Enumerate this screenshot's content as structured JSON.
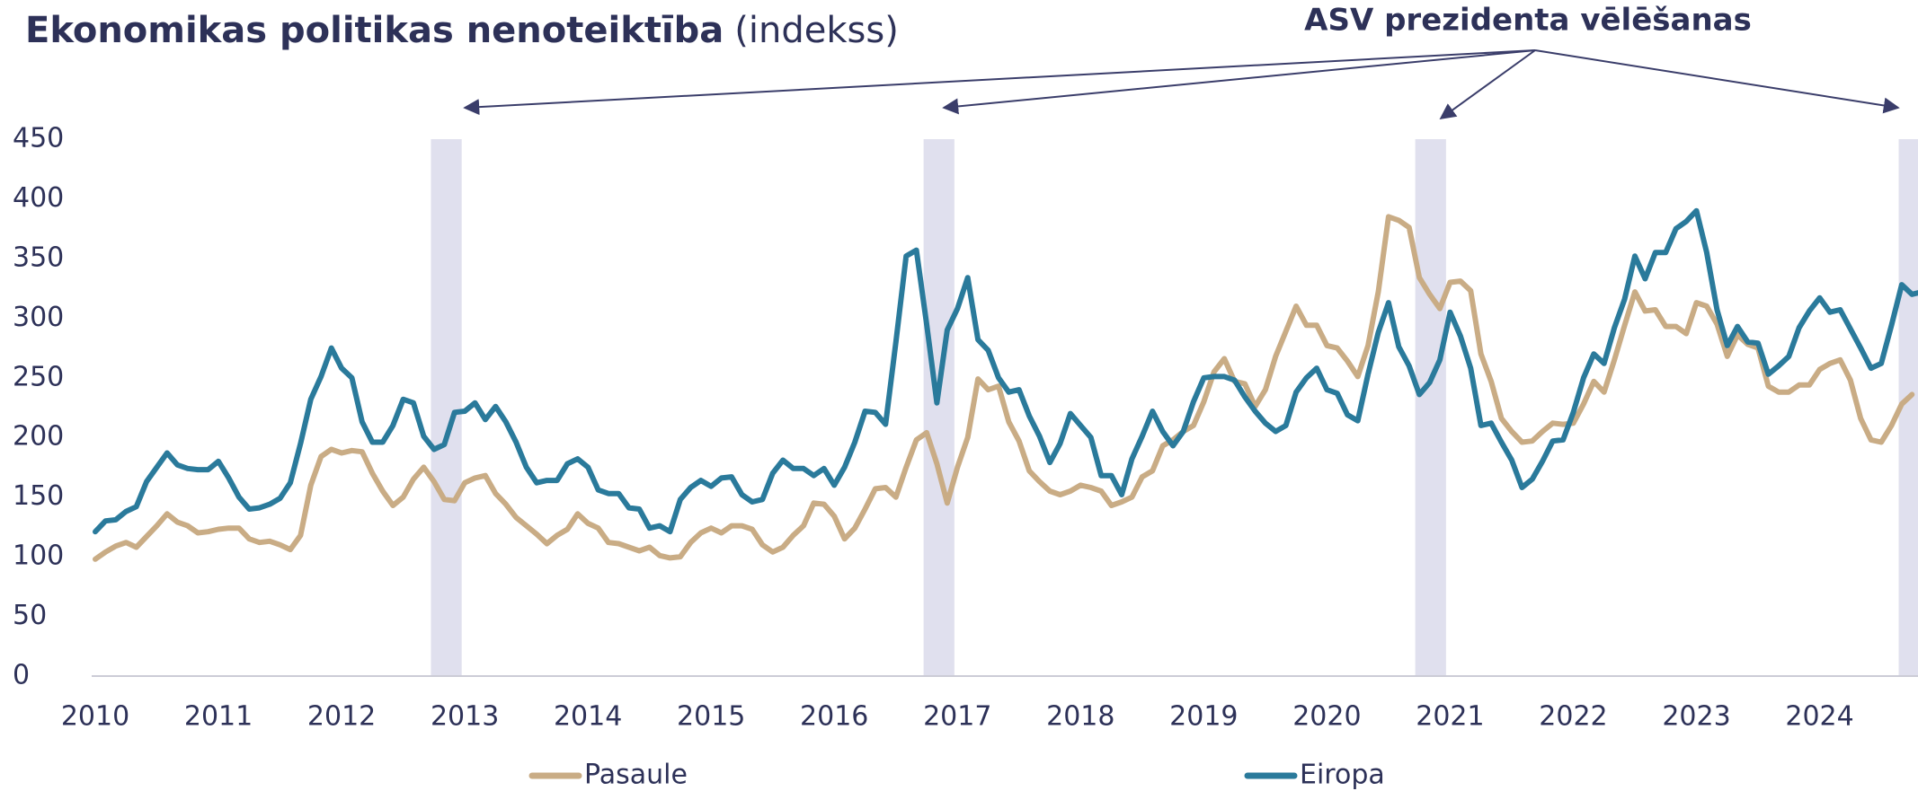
{
  "chart_data": {
    "type": "line",
    "title": "Ekonomikas politikas nenoteiktība",
    "subtitle": "(indekss)",
    "annotation": "ASV prezidenta vēlēšanas",
    "categories": [
      "2010",
      null,
      null,
      null,
      null,
      null,
      null,
      null,
      null,
      null,
      null,
      null,
      "2011",
      null,
      null,
      null,
      null,
      null,
      null,
      null,
      null,
      null,
      null,
      null,
      "2012",
      null,
      null,
      null,
      null,
      null,
      null,
      null,
      null,
      null,
      null,
      null,
      "2013",
      null,
      null,
      null,
      null,
      null,
      null,
      null,
      null,
      null,
      null,
      null,
      "2014",
      null,
      null,
      null,
      null,
      null,
      null,
      null,
      null,
      null,
      null,
      null,
      "2015",
      null,
      null,
      null,
      null,
      null,
      null,
      null,
      null,
      null,
      null,
      null,
      "2016",
      null,
      null,
      null,
      null,
      null,
      null,
      null,
      null,
      null,
      null,
      null,
      "2017",
      null,
      null,
      null,
      null,
      null,
      null,
      null,
      null,
      null,
      null,
      null,
      "2018",
      null,
      null,
      null,
      null,
      null,
      null,
      null,
      null,
      null,
      null,
      null,
      "2019",
      null,
      null,
      null,
      null,
      null,
      null,
      null,
      null,
      null,
      null,
      null,
      "2020",
      null,
      null,
      null,
      null,
      null,
      null,
      null,
      null,
      null,
      null,
      null,
      "2021",
      null,
      null,
      null,
      null,
      null,
      null,
      null,
      null,
      null,
      null,
      null,
      "2022",
      null,
      null,
      null,
      null,
      null,
      null,
      null,
      null,
      null,
      null,
      null,
      "2023",
      null,
      null,
      null,
      null,
      null,
      null,
      null,
      null,
      null,
      null,
      null,
      "2024",
      null,
      null,
      null,
      null,
      null,
      null,
      null,
      null,
      null,
      null
    ],
    "series": [
      {
        "name": "Pasaule",
        "color": "#c9ac85",
        "values": [
          98,
          104,
          109,
          112,
          108,
          117,
          126,
          136,
          129,
          126,
          120,
          121,
          123,
          124,
          124,
          115,
          112,
          113,
          110,
          106,
          118,
          160,
          184,
          190,
          187,
          189,
          188,
          170,
          155,
          143,
          150,
          165,
          175,
          163,
          148,
          147,
          162,
          166,
          168,
          153,
          144,
          133,
          126,
          119,
          111,
          118,
          123,
          136,
          128,
          124,
          112,
          111,
          108,
          105,
          108,
          101,
          99,
          100,
          112,
          120,
          124,
          120,
          126,
          126,
          123,
          110,
          104,
          108,
          118,
          126,
          145,
          144,
          134,
          115,
          124,
          140,
          157,
          158,
          150,
          175,
          198,
          204,
          178,
          145,
          175,
          200,
          249,
          240,
          243,
          213,
          197,
          172,
          163,
          155,
          152,
          155,
          160,
          158,
          155,
          143,
          146,
          150,
          167,
          172,
          193,
          198,
          205,
          210,
          230,
          255,
          266,
          247,
          245,
          226,
          240,
          268,
          289,
          310,
          294,
          294,
          277,
          275,
          264,
          251,
          277,
          322,
          385,
          382,
          376,
          334,
          320,
          308,
          330,
          331,
          323,
          270,
          247,
          216,
          205,
          196,
          197,
          205,
          212,
          211,
          212,
          228,
          247,
          238,
          265,
          294,
          322,
          306,
          307,
          293,
          293,
          287,
          313,
          310,
          295,
          268,
          286,
          278,
          275,
          243,
          238,
          238,
          244,
          244,
          257,
          262,
          265,
          248,
          216,
          198,
          196,
          210,
          228,
          236,
          null
        ]
      },
      {
        "name": "Eiropa",
        "color": "#2a7a9b",
        "values": [
          121,
          130,
          131,
          138,
          142,
          163,
          175,
          187,
          177,
          174,
          173,
          173,
          180,
          166,
          150,
          140,
          141,
          144,
          149,
          162,
          195,
          232,
          251,
          275,
          258,
          250,
          213,
          196,
          196,
          210,
          232,
          229,
          201,
          190,
          194,
          221,
          222,
          229,
          215,
          226,
          213,
          196,
          175,
          162,
          164,
          164,
          178,
          182,
          175,
          156,
          153,
          153,
          141,
          140,
          124,
          126,
          121,
          148,
          158,
          164,
          159,
          166,
          167,
          152,
          146,
          148,
          170,
          181,
          174,
          174,
          168,
          174,
          160,
          175,
          196,
          222,
          221,
          211,
          280,
          352,
          357,
          295,
          229,
          290,
          308,
          334,
          282,
          273,
          250,
          238,
          240,
          218,
          201,
          179,
          195,
          220,
          210,
          200,
          168,
          168,
          152,
          182,
          201,
          222,
          205,
          193,
          205,
          230,
          250,
          251,
          251,
          248,
          234,
          222,
          212,
          205,
          210,
          238,
          250,
          258,
          240,
          237,
          219,
          214,
          253,
          288,
          313,
          276,
          260,
          236,
          246,
          265,
          305,
          285,
          258,
          210,
          212,
          196,
          181,
          158,
          165,
          180,
          197,
          198,
          221,
          250,
          270,
          262,
          292,
          316,
          352,
          333,
          355,
          355,
          375,
          381,
          390,
          355,
          307,
          277,
          293,
          280,
          279,
          253,
          260,
          268,
          292,
          306,
          317,
          305,
          307,
          291,
          275,
          258,
          262,
          294,
          328,
          320,
          322
        ]
      }
    ],
    "bands": [
      [
        32.7,
        35.7
      ],
      [
        80.7,
        83.7
      ],
      [
        128.6,
        131.6
      ],
      [
        175.7,
        179
      ]
    ],
    "band_color": "#e0e0ee",
    "ylim": [
      0,
      450
    ],
    "yticks": [
      0,
      50,
      100,
      150,
      200,
      250,
      300,
      350,
      400,
      450
    ],
    "grid": false,
    "legend": "bottom"
  }
}
